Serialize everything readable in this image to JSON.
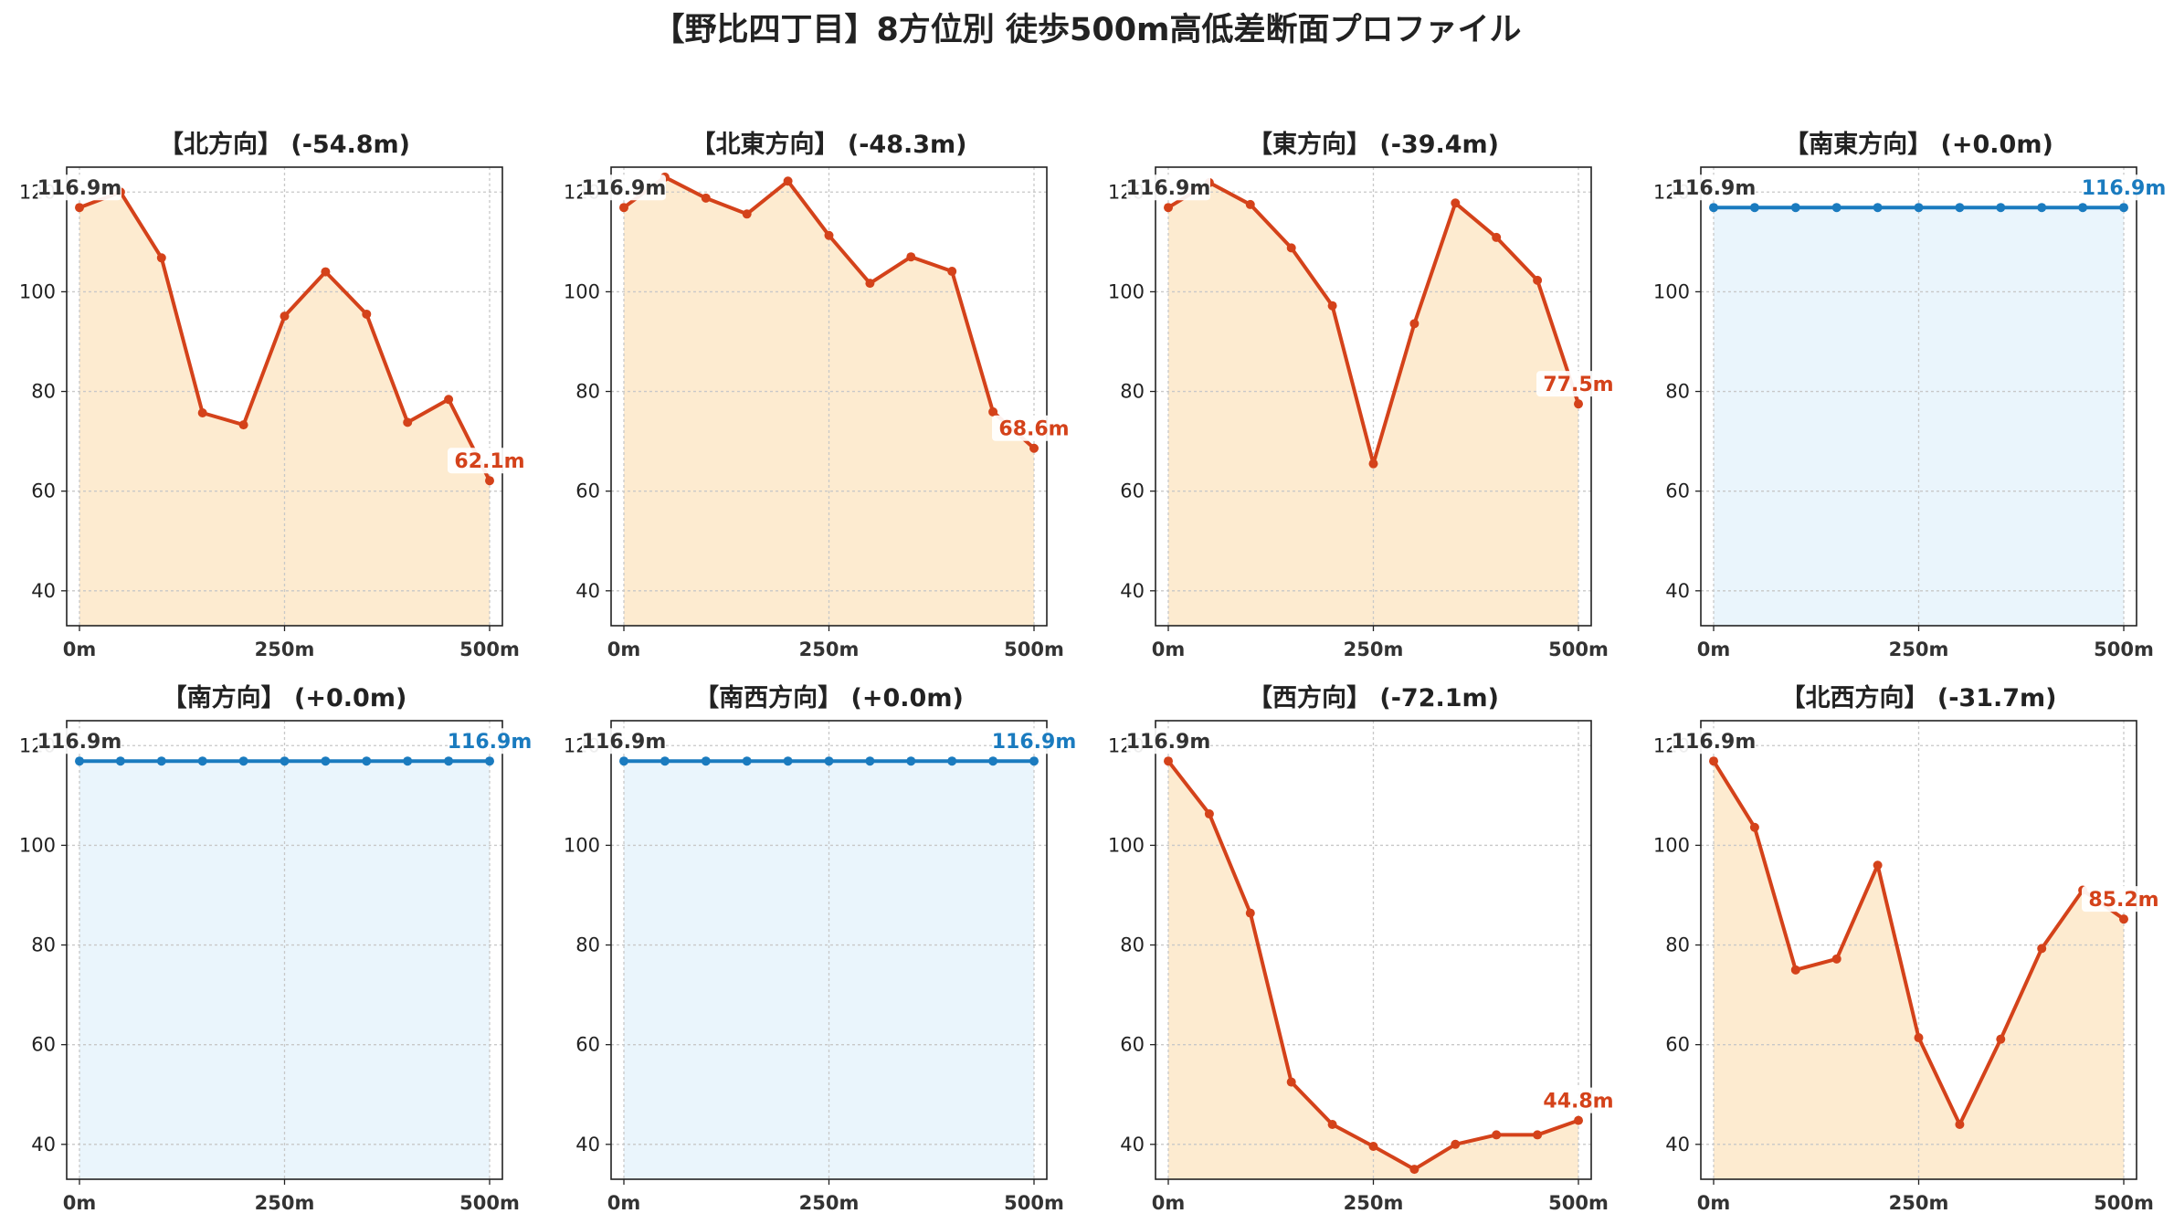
{
  "title": "【野比四丁目】8方位別 徒歩500m高低差断面プロファイル",
  "colors": {
    "down_line": "#d4421a",
    "down_fill": "#fdebd0",
    "flat_line": "#1a7bbf",
    "flat_fill": "#eaf5fc",
    "grid": "#c8c8c8"
  },
  "chart_data": [
    {
      "type": "area",
      "title": "【北方向】 (-54.8m)",
      "tone": "down",
      "x": [
        0,
        50,
        100,
        150,
        200,
        250,
        300,
        350,
        400,
        450,
        500
      ],
      "y": [
        116.9,
        120.0,
        106.8,
        75.7,
        73.3,
        95.1,
        104.0,
        95.5,
        73.8,
        78.4,
        62.1
      ],
      "start_label": "116.9m",
      "end_label": "62.1m",
      "xticks": [
        "0m",
        "250m",
        "500m"
      ],
      "yticks": [
        40,
        60,
        80,
        100,
        120
      ],
      "ylim": [
        33,
        125
      ],
      "xlim": [
        0,
        500
      ],
      "grid": true
    },
    {
      "type": "area",
      "title": "【北東方向】 (-48.3m)",
      "tone": "down",
      "x": [
        0,
        50,
        100,
        150,
        200,
        250,
        300,
        350,
        400,
        450,
        500
      ],
      "y": [
        116.9,
        123.0,
        118.8,
        115.6,
        122.2,
        111.3,
        101.7,
        107.0,
        104.1,
        75.9,
        68.6
      ],
      "start_label": "116.9m",
      "end_label": "68.6m",
      "xticks": [
        "0m",
        "250m",
        "500m"
      ],
      "yticks": [
        40,
        60,
        80,
        100,
        120
      ],
      "ylim": [
        33,
        125
      ],
      "xlim": [
        0,
        500
      ],
      "grid": true
    },
    {
      "type": "area",
      "title": "【東方向】 (-39.4m)",
      "tone": "down",
      "x": [
        0,
        50,
        100,
        150,
        200,
        250,
        300,
        350,
        400,
        450,
        500
      ],
      "y": [
        116.9,
        121.9,
        117.5,
        108.8,
        97.2,
        65.5,
        93.6,
        117.8,
        110.9,
        102.3,
        77.5
      ],
      "start_label": "116.9m",
      "end_label": "77.5m",
      "xticks": [
        "0m",
        "250m",
        "500m"
      ],
      "yticks": [
        40,
        60,
        80,
        100,
        120
      ],
      "ylim": [
        33,
        125
      ],
      "xlim": [
        0,
        500
      ],
      "grid": true
    },
    {
      "type": "area",
      "title": "【南東方向】 (+0.0m)",
      "tone": "flat",
      "x": [
        0,
        50,
        100,
        150,
        200,
        250,
        300,
        350,
        400,
        450,
        500
      ],
      "y": [
        116.9,
        116.9,
        116.9,
        116.9,
        116.9,
        116.9,
        116.9,
        116.9,
        116.9,
        116.9,
        116.9
      ],
      "start_label": "116.9m",
      "end_label": "116.9m",
      "xticks": [
        "0m",
        "250m",
        "500m"
      ],
      "yticks": [
        40,
        60,
        80,
        100,
        120
      ],
      "ylim": [
        33,
        125
      ],
      "xlim": [
        0,
        500
      ],
      "grid": true
    },
    {
      "type": "area",
      "title": "【南方向】 (+0.0m)",
      "tone": "flat",
      "x": [
        0,
        50,
        100,
        150,
        200,
        250,
        300,
        350,
        400,
        450,
        500
      ],
      "y": [
        116.9,
        116.9,
        116.9,
        116.9,
        116.9,
        116.9,
        116.9,
        116.9,
        116.9,
        116.9,
        116.9
      ],
      "start_label": "116.9m",
      "end_label": "116.9m",
      "xticks": [
        "0m",
        "250m",
        "500m"
      ],
      "yticks": [
        40,
        60,
        80,
        100,
        120
      ],
      "ylim": [
        33,
        125
      ],
      "xlim": [
        0,
        500
      ],
      "grid": true
    },
    {
      "type": "area",
      "title": "【南西方向】 (+0.0m)",
      "tone": "flat",
      "x": [
        0,
        50,
        100,
        150,
        200,
        250,
        300,
        350,
        400,
        450,
        500
      ],
      "y": [
        116.9,
        116.9,
        116.9,
        116.9,
        116.9,
        116.9,
        116.9,
        116.9,
        116.9,
        116.9,
        116.9
      ],
      "start_label": "116.9m",
      "end_label": "116.9m",
      "xticks": [
        "0m",
        "250m",
        "500m"
      ],
      "yticks": [
        40,
        60,
        80,
        100,
        120
      ],
      "ylim": [
        33,
        125
      ],
      "xlim": [
        0,
        500
      ],
      "grid": true
    },
    {
      "type": "area",
      "title": "【西方向】 (-72.1m)",
      "tone": "down",
      "x": [
        0,
        50,
        100,
        150,
        200,
        250,
        300,
        350,
        400,
        450,
        500
      ],
      "y": [
        116.9,
        106.3,
        86.4,
        52.5,
        44.0,
        39.6,
        35.0,
        40.0,
        41.9,
        41.9,
        44.8
      ],
      "start_label": "116.9m",
      "end_label": "44.8m",
      "xticks": [
        "0m",
        "250m",
        "500m"
      ],
      "yticks": [
        40,
        60,
        80,
        100,
        120
      ],
      "ylim": [
        33,
        125
      ],
      "xlim": [
        0,
        500
      ],
      "grid": true
    },
    {
      "type": "area",
      "title": "【北西方向】 (-31.7m)",
      "tone": "down",
      "x": [
        0,
        50,
        100,
        150,
        200,
        250,
        300,
        350,
        400,
        450,
        500
      ],
      "y": [
        116.9,
        103.6,
        75.0,
        77.2,
        96.0,
        61.4,
        44.0,
        61.1,
        79.3,
        91.0,
        85.2
      ],
      "start_label": "116.9m",
      "end_label": "85.2m",
      "xticks": [
        "0m",
        "250m",
        "500m"
      ],
      "yticks": [
        40,
        60,
        80,
        100,
        120
      ],
      "ylim": [
        33,
        125
      ],
      "xlim": [
        0,
        500
      ],
      "grid": true
    }
  ]
}
